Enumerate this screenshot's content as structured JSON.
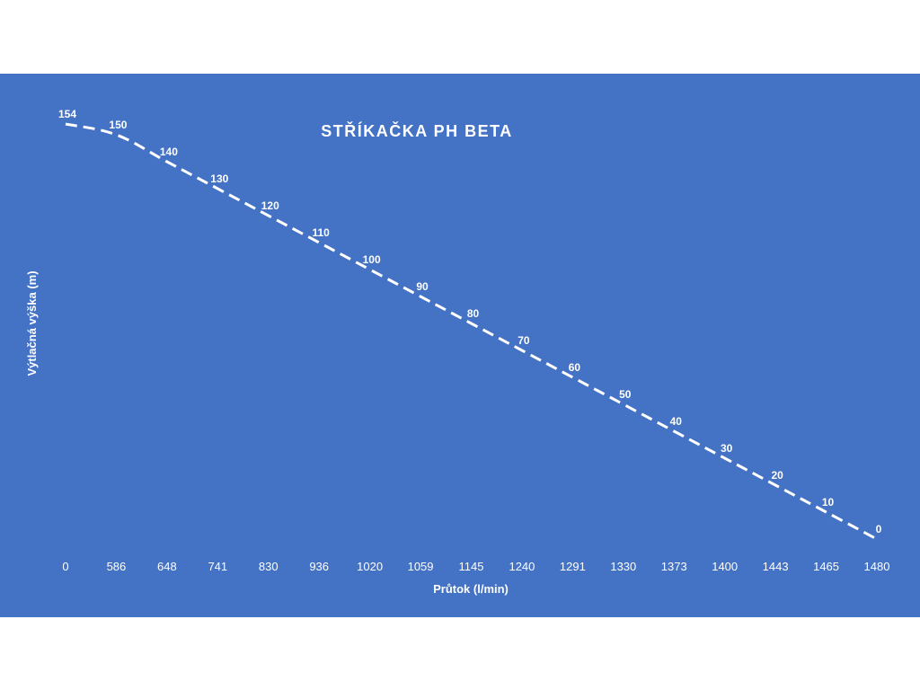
{
  "chart_data": {
    "type": "line",
    "title": "STŘÍKAČKA PH BETA",
    "xlabel": "Průtok (l/min)",
    "ylabel": "Výtlačná výška (m)",
    "categories": [
      "0",
      "586",
      "648",
      "741",
      "830",
      "936",
      "1020",
      "1059",
      "1145",
      "1240",
      "1291",
      "1330",
      "1373",
      "1400",
      "1443",
      "1465",
      "1480"
    ],
    "series": [
      {
        "values": [
          154,
          150,
          140,
          130,
          120,
          110,
          100,
          90,
          80,
          70,
          60,
          50,
          40,
          30,
          20,
          10,
          0
        ]
      }
    ],
    "ylim": [
      0,
      160
    ],
    "grid": false,
    "legend": "none",
    "drop_lines": true,
    "data_labels": true,
    "line_style": "dashed",
    "colors": {
      "background": "#4472c4",
      "line": "#ffffff",
      "text": "#ffffff"
    }
  }
}
